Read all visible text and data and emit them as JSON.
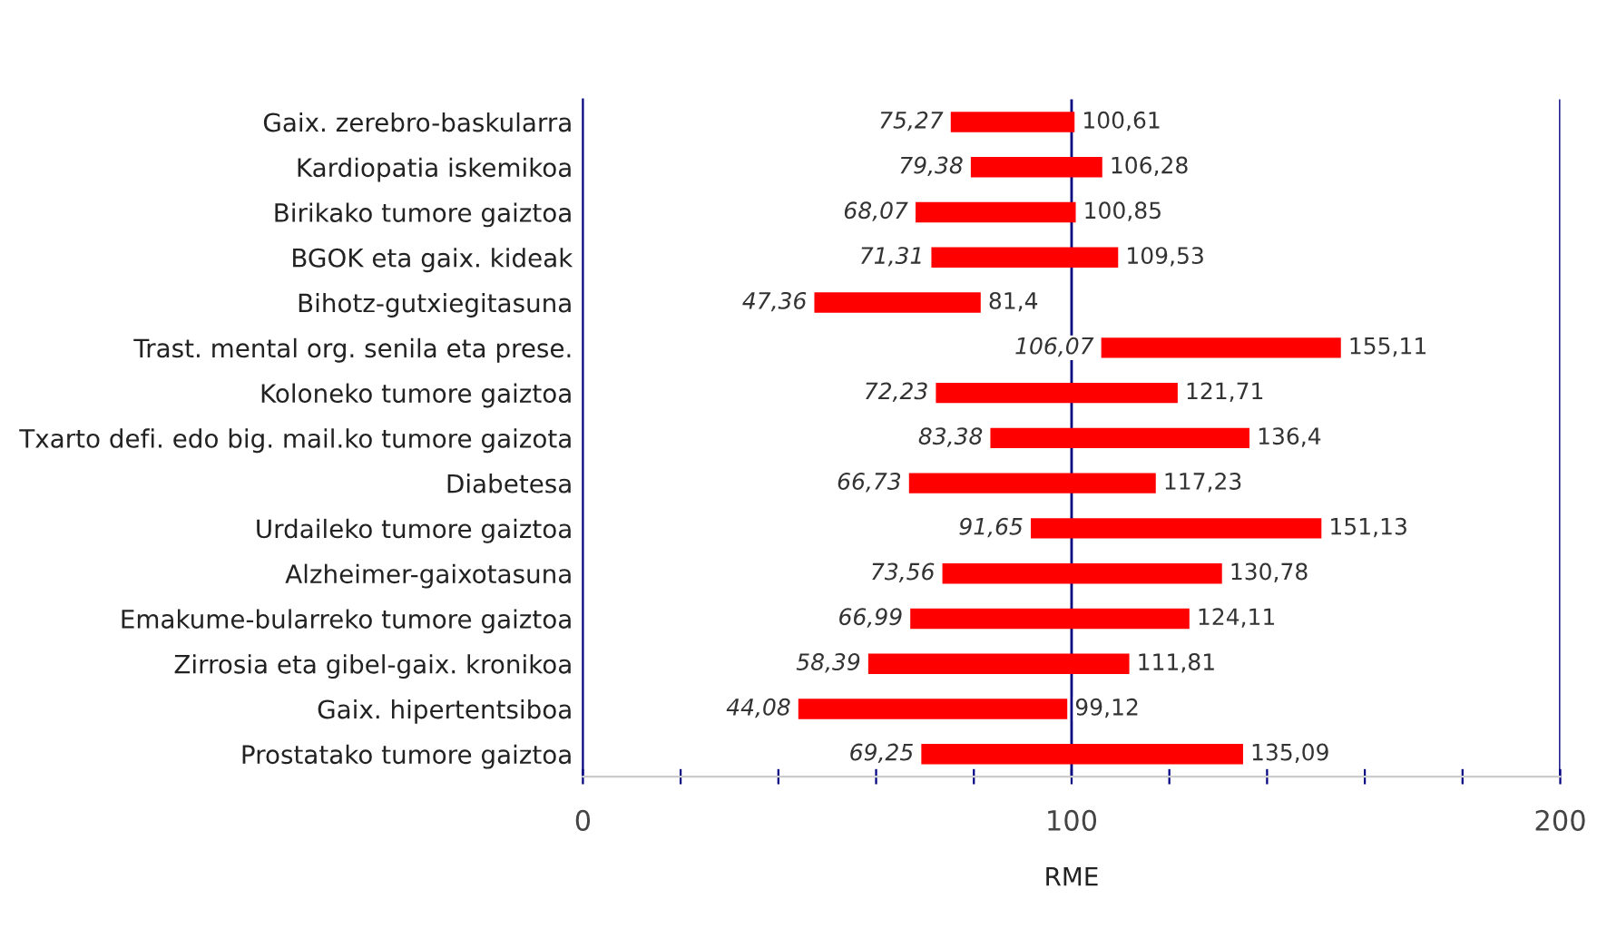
{
  "chart_data": {
    "type": "bar",
    "orientation": "horizontal",
    "xlabel": "RME",
    "categories": [
      "Gaix. zerebro-baskularra",
      "Kardiopatia iskemikoa",
      "Birikako tumore gaiztoa",
      "BGOK eta gaix. kideak",
      "Bihotz-gutxiegitasuna",
      "Trast. mental org. senila eta prese.",
      "Koloneko tumore gaiztoa",
      "Txarto defi. edo big. mail.ko tumore gaizota",
      "Diabetesa",
      "Urdaileko tumore gaiztoa",
      "Alzheimer-gaixotasuna",
      "Emakume-bularreko tumore gaiztoa",
      "Zirrosia eta gibel-gaix. kronikoa",
      "Gaix. hipertentsiboa",
      "Prostatako tumore gaiztoa"
    ],
    "base": [
      75.27,
      79.38,
      68.07,
      71.31,
      47.36,
      106.07,
      72.23,
      83.38,
      66.73,
      91.65,
      73.56,
      66.99,
      58.39,
      44.08,
      69.25
    ],
    "values": [
      25.34,
      26.9,
      32.78,
      38.22,
      34.04,
      49.04,
      49.48,
      53.02,
      50.5,
      59.48,
      57.22,
      57.12,
      53.42,
      55.04,
      65.84
    ],
    "color": "#ff0000",
    "xlim": [
      0,
      200
    ],
    "xticks": [
      0,
      {
        "value": 20,
        "label": null
      },
      {
        "value": 40,
        "label": null
      },
      {
        "value": 60,
        "label": null
      },
      {
        "value": 80,
        "label": null
      },
      100,
      {
        "value": 120,
        "label": null
      },
      {
        "value": 140,
        "label": null
      },
      {
        "value": 160,
        "label": null
      },
      {
        "value": 180,
        "label": null
      },
      200
    ],
    "ref_lines": [
      {
        "axis": "x",
        "value": 100,
        "color": "#000080"
      },
      {
        "axis": "x",
        "value": 200,
        "color": "#000080"
      }
    ],
    "grid": false,
    "legend": false,
    "annotations": [
      {
        "text": "75,27",
        "x": 75.27,
        "y": "Gaix. zerebro-baskularra"
      },
      {
        "text": "100,61",
        "x": 100.61,
        "y": "Gaix. zerebro-baskularra"
      },
      {
        "text": "79,38",
        "x": 79.38,
        "y": "Kardiopatia iskemikoa"
      },
      {
        "text": "106,28",
        "x": 106.28,
        "y": "Kardiopatia iskemikoa"
      },
      {
        "text": "68,07",
        "x": 68.07,
        "y": "Birikako tumore gaiztoa"
      },
      {
        "text": "100,85",
        "x": 100.85,
        "y": "Birikako tumore gaiztoa"
      },
      {
        "text": "71,31",
        "x": 71.31,
        "y": "BGOK eta gaix. kideak"
      },
      {
        "text": "109,53",
        "x": 109.53,
        "y": "BGOK eta gaix. kideak"
      },
      {
        "text": "47,36",
        "x": 47.36,
        "y": "Bihotz-gutxiegitasuna"
      },
      {
        "text": "81,4",
        "x": 81.4,
        "y": "Bihotz-gutxiegitasuna"
      },
      {
        "text": "106,07",
        "x": 106.07,
        "y": "Trast. mental org. senila eta prese."
      },
      {
        "text": "155,11",
        "x": 155.11,
        "y": "Trast. mental org. senila eta prese."
      },
      {
        "text": "72,23",
        "x": 72.23,
        "y": "Koloneko tumore gaiztoa"
      },
      {
        "text": "121,71",
        "x": 121.71,
        "y": "Koloneko tumore gaiztoa"
      },
      {
        "text": "83,38",
        "x": 83.38,
        "y": "Txarto defi. edo big. mail.ko tumore gaizota"
      },
      {
        "text": "136,4",
        "x": 136.4,
        "y": "Txarto defi. edo big. mail.ko tumore gaizota"
      },
      {
        "text": "66,73",
        "x": 66.73,
        "y": "Diabetesa"
      },
      {
        "text": "117,23",
        "x": 117.23,
        "y": "Diabetesa"
      },
      {
        "text": "91,65",
        "x": 91.65,
        "y": "Urdaileko tumore gaiztoa"
      },
      {
        "text": "151,13",
        "x": 151.13,
        "y": "Urdaileko tumore gaiztoa"
      },
      {
        "text": "73,56",
        "x": 73.56,
        "y": "Alzheimer-gaixotasuna"
      },
      {
        "text": "130,78",
        "x": 130.78,
        "y": "Alzheimer-gaixotasuna"
      },
      {
        "text": "66,99",
        "x": 66.99,
        "y": "Emakume-bularreko tumore gaiztoa"
      },
      {
        "text": "124,11",
        "x": 124.11,
        "y": "Emakume-bularreko tumore gaiztoa"
      },
      {
        "text": "58,39",
        "x": 58.39,
        "y": "Zirrosia eta gibel-gaix. kronikoa"
      },
      {
        "text": "111,81",
        "x": 111.81,
        "y": "Zirrosia eta gibel-gaix. kronikoa"
      },
      {
        "text": "44,08",
        "x": 44.08,
        "y": "Gaix. hipertentsiboa"
      },
      {
        "text": "99,12",
        "x": 99.12,
        "y": "Gaix. hipertentsiboa"
      },
      {
        "text": "69,25",
        "x": 69.25,
        "y": "Prostatako tumore gaiztoa"
      },
      {
        "text": "135,09",
        "x": 135.09,
        "y": "Prostatako tumore gaiztoa"
      }
    ]
  }
}
